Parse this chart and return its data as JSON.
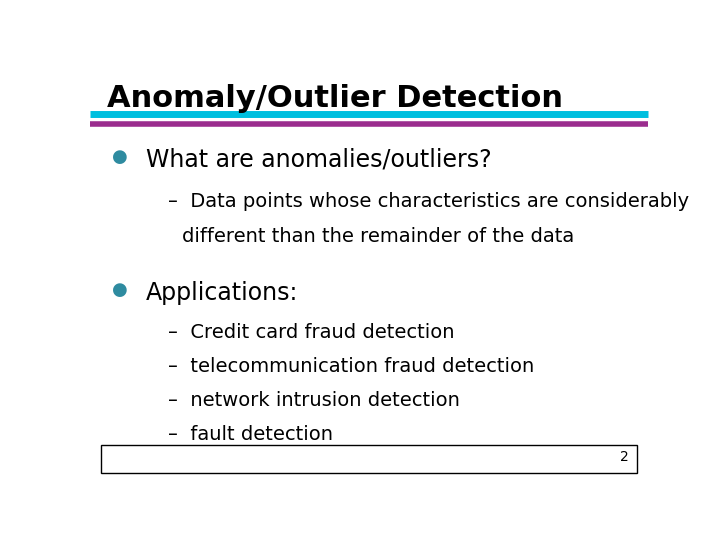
{
  "title": "Anomaly/Outlier Detection",
  "title_color": "#000000",
  "title_fontsize": 22,
  "title_bold": true,
  "line1_color": "#00BFDF",
  "line2_color": "#FFFFFF",
  "line3_color": "#9B2D8E",
  "bullet_color": "#2E8BA0",
  "bullet1_text": "What are anomalies/outliers?",
  "bullet1_fontsize": 17,
  "sub1_line1": "–  Data points whose characteristics are considerably",
  "sub1_line2": "different than the remainder of the data",
  "sub_fontsize": 14,
  "bullet2_text": "Applications:",
  "bullet2_fontsize": 17,
  "sub2_items": [
    "–  Credit card fraud detection",
    "–  telecommunication fraud detection",
    "–  network intrusion detection",
    "–  fault detection"
  ],
  "page_number": "2",
  "bg_color": "#FFFFFF",
  "text_color": "#000000"
}
